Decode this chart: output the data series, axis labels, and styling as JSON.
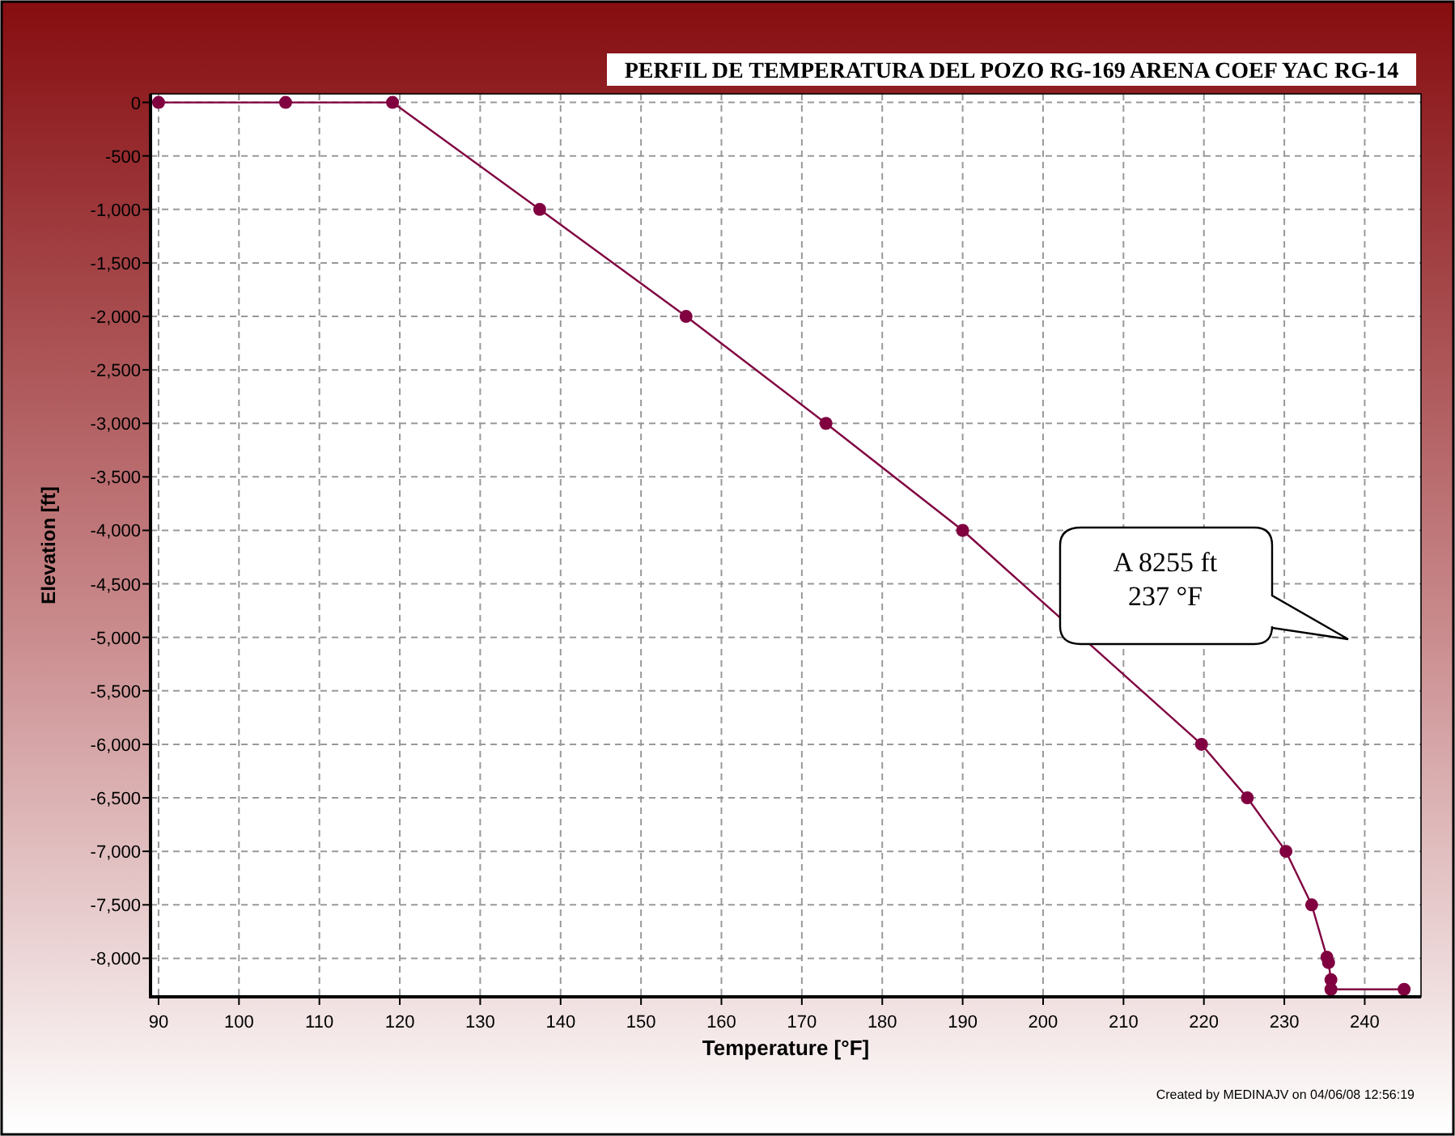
{
  "chart_data": {
    "type": "line",
    "title": "PERFIL DE TEMPERATURA DEL POZO RG-169 ARENA COEF YAC RG-14",
    "xlabel": "Temperature [°F]",
    "ylabel": "Elevation [ft]",
    "x": [
      90,
      105.8,
      119.1,
      137.4,
      155.6,
      173.0,
      190.0,
      219.7,
      225.4,
      230.2,
      233.4,
      235.3,
      235.5,
      235.8,
      235.8,
      244.9
    ],
    "series": [
      {
        "color": "#800040",
        "values": [
          0,
          0,
          0,
          -1000,
          -2000,
          -3000,
          -4000,
          -6000,
          -6500,
          -7000,
          -7500,
          -7990,
          -8040,
          -8200,
          -8290,
          -8290
        ]
      }
    ],
    "xlim": [
      89,
      247
    ],
    "ylim": [
      -8360,
      80
    ],
    "xticks": [
      90,
      100,
      110,
      120,
      130,
      140,
      150,
      160,
      170,
      180,
      190,
      200,
      210,
      220,
      230,
      240
    ],
    "yticks": [
      0,
      -500,
      {
        "value": -1000,
        "label": "-1,000"
      },
      {
        "value": -1500,
        "label": "-1,500"
      },
      {
        "value": -2000,
        "label": "-2,000"
      },
      {
        "value": -2500,
        "label": "-2,500"
      },
      {
        "value": -3000,
        "label": "-3,000"
      },
      {
        "value": -3500,
        "label": "-3,500"
      },
      {
        "value": -4000,
        "label": "-4,000"
      },
      {
        "value": -4500,
        "label": "-4,500"
      },
      {
        "value": -5000,
        "label": "-5,000"
      },
      {
        "value": -5500,
        "label": "-5,500"
      },
      {
        "value": -6000,
        "label": "-6,000"
      },
      {
        "value": -6500,
        "label": "-6,500"
      },
      {
        "value": -7000,
        "label": "-7,000"
      },
      {
        "value": -7500,
        "label": "-7,500"
      },
      {
        "value": -8000,
        "label": "-8,000"
      }
    ],
    "grid": true,
    "marker": "circle",
    "line_style": "solid",
    "annotations": [
      "A 8255 ft\n237 °F",
      "Created by MEDINAJV on 04/06/08   12:56:19"
    ]
  }
}
